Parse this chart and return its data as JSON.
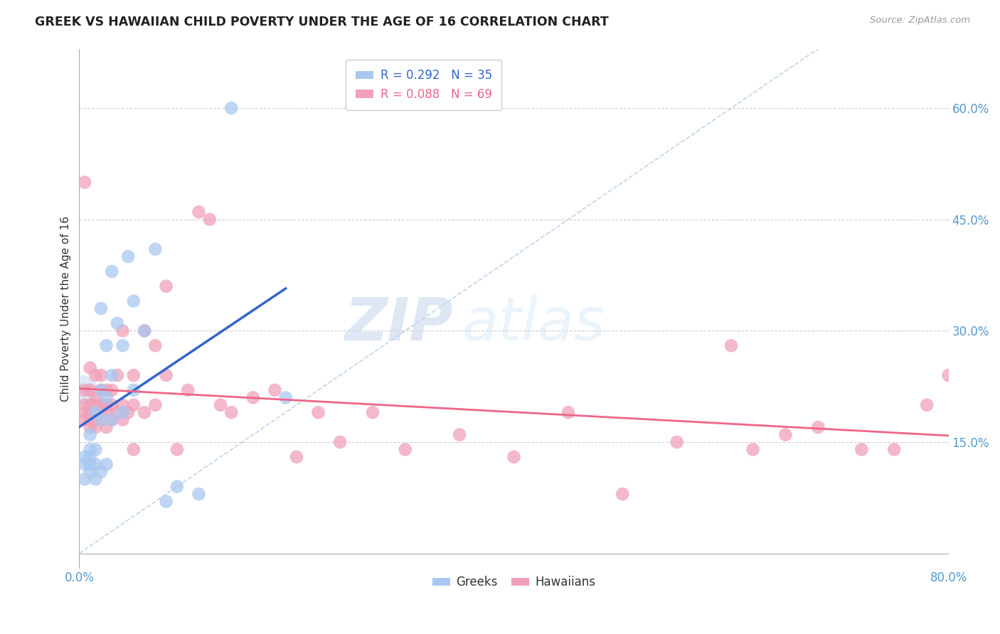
{
  "title": "GREEK VS HAWAIIAN CHILD POVERTY UNDER THE AGE OF 16 CORRELATION CHART",
  "source": "Source: ZipAtlas.com",
  "ylabel": "Child Poverty Under the Age of 16",
  "xlim": [
    0.0,
    0.8
  ],
  "ylim": [
    -0.02,
    0.68
  ],
  "xticks": [
    0.0,
    0.2,
    0.4,
    0.6,
    0.8
  ],
  "xticklabels": [
    "0.0%",
    "",
    "",
    "",
    "80.0%"
  ],
  "ytick_positions": [
    0.15,
    0.3,
    0.45,
    0.6
  ],
  "ytick_labels": [
    "15.0%",
    "30.0%",
    "45.0%",
    "60.0%"
  ],
  "greek_R": 0.292,
  "greek_N": 35,
  "hawaiian_R": 0.088,
  "hawaiian_N": 69,
  "greek_color": "#A8C8F0",
  "hawaiian_color": "#F0A0B8",
  "greek_line_color": "#3366CC",
  "hawaiian_line_color": "#EE6688",
  "diagonal_color": "#B0C8E8",
  "watermark_zip": "ZIP",
  "watermark_atlas": "atlas",
  "greek_x": [
    0.005,
    0.005,
    0.005,
    0.01,
    0.01,
    0.01,
    0.01,
    0.01,
    0.015,
    0.015,
    0.015,
    0.015,
    0.02,
    0.02,
    0.02,
    0.02,
    0.025,
    0.025,
    0.025,
    0.03,
    0.03,
    0.03,
    0.035,
    0.04,
    0.04,
    0.045,
    0.05,
    0.05,
    0.06,
    0.07,
    0.08,
    0.09,
    0.11,
    0.14,
    0.19
  ],
  "greek_y": [
    0.1,
    0.12,
    0.13,
    0.11,
    0.12,
    0.13,
    0.14,
    0.16,
    0.1,
    0.12,
    0.14,
    0.19,
    0.11,
    0.18,
    0.22,
    0.33,
    0.12,
    0.21,
    0.28,
    0.18,
    0.24,
    0.38,
    0.31,
    0.19,
    0.28,
    0.4,
    0.22,
    0.34,
    0.3,
    0.41,
    0.07,
    0.09,
    0.08,
    0.6,
    0.21
  ],
  "greek_big_x": [
    0.003
  ],
  "greek_big_y": [
    0.22
  ],
  "hawaiian_x": [
    0.005,
    0.005,
    0.005,
    0.005,
    0.01,
    0.01,
    0.01,
    0.01,
    0.01,
    0.01,
    0.015,
    0.015,
    0.015,
    0.015,
    0.015,
    0.02,
    0.02,
    0.02,
    0.02,
    0.02,
    0.025,
    0.025,
    0.025,
    0.025,
    0.03,
    0.03,
    0.03,
    0.035,
    0.035,
    0.04,
    0.04,
    0.04,
    0.045,
    0.05,
    0.05,
    0.05,
    0.06,
    0.06,
    0.07,
    0.07,
    0.08,
    0.08,
    0.09,
    0.1,
    0.11,
    0.12,
    0.13,
    0.14,
    0.16,
    0.18,
    0.2,
    0.22,
    0.24,
    0.27,
    0.3,
    0.35,
    0.4,
    0.45,
    0.5,
    0.55,
    0.6,
    0.62,
    0.65,
    0.68,
    0.72,
    0.75,
    0.78,
    0.8,
    0.005
  ],
  "hawaiian_y": [
    0.18,
    0.19,
    0.2,
    0.22,
    0.17,
    0.18,
    0.19,
    0.2,
    0.22,
    0.25,
    0.17,
    0.18,
    0.2,
    0.21,
    0.24,
    0.18,
    0.19,
    0.2,
    0.22,
    0.24,
    0.17,
    0.19,
    0.2,
    0.22,
    0.18,
    0.2,
    0.22,
    0.19,
    0.24,
    0.18,
    0.2,
    0.3,
    0.19,
    0.14,
    0.2,
    0.24,
    0.19,
    0.3,
    0.2,
    0.28,
    0.24,
    0.36,
    0.14,
    0.22,
    0.46,
    0.45,
    0.2,
    0.19,
    0.21,
    0.22,
    0.13,
    0.19,
    0.15,
    0.19,
    0.14,
    0.16,
    0.13,
    0.19,
    0.08,
    0.15,
    0.28,
    0.14,
    0.16,
    0.17,
    0.14,
    0.14,
    0.2,
    0.24,
    0.5
  ]
}
